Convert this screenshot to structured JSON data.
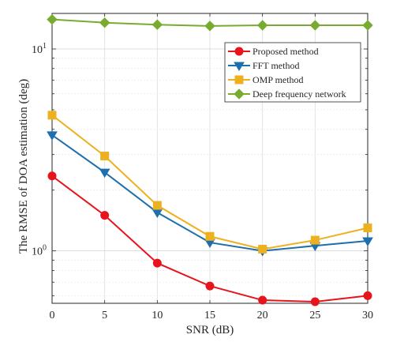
{
  "chart_data": {
    "type": "line",
    "xlabel": "SNR (dB)",
    "ylabel": "The RMSE of DOA estimation (deg)",
    "y_scale": "log",
    "grid": true,
    "legend_position": "top-right",
    "xlim": [
      0,
      30
    ],
    "ylim": [
      0.55,
      15
    ],
    "x": [
      0,
      5,
      10,
      15,
      20,
      25,
      30
    ],
    "x_tick_labels": [
      "0",
      "5",
      "10",
      "15",
      "20",
      "25",
      "30"
    ],
    "y_tick_labels": [
      {
        "value": 1,
        "base": "10",
        "exp": "0"
      },
      {
        "value": 10,
        "base": "10",
        "exp": "1"
      }
    ],
    "series": [
      {
        "name": "Proposed method",
        "color": "#e8141b",
        "marker": "circle",
        "values": [
          2.35,
          1.5,
          0.87,
          0.67,
          0.57,
          0.56,
          0.6
        ]
      },
      {
        "name": "FFT method",
        "color": "#1d6fad",
        "marker": "triangle-down",
        "values": [
          3.75,
          2.45,
          1.55,
          1.1,
          1.0,
          1.06,
          1.12
        ]
      },
      {
        "name": "OMP method",
        "color": "#edb120",
        "marker": "square",
        "values": [
          4.7,
          2.95,
          1.68,
          1.18,
          1.02,
          1.13,
          1.3
        ]
      },
      {
        "name": "Deep frequency network",
        "color": "#77ac30",
        "marker": "diamond",
        "values": [
          14.0,
          13.5,
          13.2,
          13.0,
          13.1,
          13.1,
          13.1
        ]
      }
    ]
  }
}
